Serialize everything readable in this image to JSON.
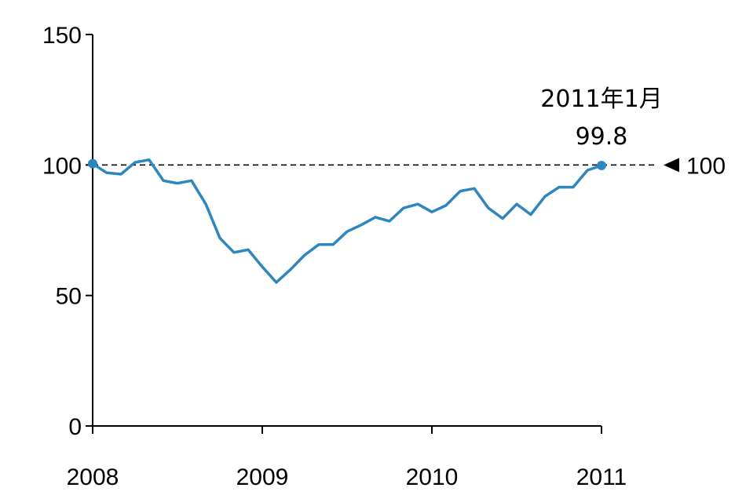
{
  "chart_data": {
    "type": "line",
    "title": "",
    "xlabel": "",
    "ylabel": "",
    "xlim": [
      2008.0,
      2011.0
    ],
    "ylim": [
      0,
      150
    ],
    "x_ticks": [
      {
        "value": 2008,
        "label": "2008"
      },
      {
        "value": 2009,
        "label": "2009"
      },
      {
        "value": 2010,
        "label": "2010"
      },
      {
        "value": 2011,
        "label": "2011"
      }
    ],
    "y_ticks": [
      {
        "value": 0,
        "label": "0"
      },
      {
        "value": 50,
        "label": "50"
      },
      {
        "value": 100,
        "label": "100"
      },
      {
        "value": 150,
        "label": "150"
      }
    ],
    "grid": false,
    "reference_line": {
      "value": 100,
      "label": "100",
      "style": "dashed",
      "marker": "left-pointing triangle"
    },
    "series": [
      {
        "color": "#2e86c1",
        "points": [
          {
            "x": 2008.0,
            "y": 100.5
          },
          {
            "x": 2008.083,
            "y": 97
          },
          {
            "x": 2008.167,
            "y": 96.5
          },
          {
            "x": 2008.25,
            "y": 101
          },
          {
            "x": 2008.333,
            "y": 102
          },
          {
            "x": 2008.417,
            "y": 94
          },
          {
            "x": 2008.5,
            "y": 93
          },
          {
            "x": 2008.583,
            "y": 94
          },
          {
            "x": 2008.667,
            "y": 85
          },
          {
            "x": 2008.75,
            "y": 72
          },
          {
            "x": 2008.833,
            "y": 66.5
          },
          {
            "x": 2008.917,
            "y": 67.5
          },
          {
            "x": 2009.0,
            "y": 61
          },
          {
            "x": 2009.083,
            "y": 55
          },
          {
            "x": 2009.167,
            "y": 60
          },
          {
            "x": 2009.25,
            "y": 65.5
          },
          {
            "x": 2009.333,
            "y": 69.5
          },
          {
            "x": 2009.417,
            "y": 69.5
          },
          {
            "x": 2009.5,
            "y": 74.5
          },
          {
            "x": 2009.583,
            "y": 77
          },
          {
            "x": 2009.667,
            "y": 80
          },
          {
            "x": 2009.75,
            "y": 78.5
          },
          {
            "x": 2009.833,
            "y": 83.5
          },
          {
            "x": 2009.917,
            "y": 85
          },
          {
            "x": 2010.0,
            "y": 82
          },
          {
            "x": 2010.083,
            "y": 84.5
          },
          {
            "x": 2010.167,
            "y": 90
          },
          {
            "x": 2010.25,
            "y": 91
          },
          {
            "x": 2010.333,
            "y": 83.5
          },
          {
            "x": 2010.417,
            "y": 79.5
          },
          {
            "x": 2010.5,
            "y": 85
          },
          {
            "x": 2010.583,
            "y": 81
          },
          {
            "x": 2010.667,
            "y": 88
          },
          {
            "x": 2010.75,
            "y": 91.5
          },
          {
            "x": 2010.833,
            "y": 91.5
          },
          {
            "x": 2010.917,
            "y": 98
          },
          {
            "x": 2011.0,
            "y": 99.8
          }
        ],
        "markers": [
          {
            "x": 2008.0,
            "y": 100.5
          },
          {
            "x": 2011.0,
            "y": 99.8
          }
        ]
      }
    ],
    "annotations": [
      {
        "x": 2011.0,
        "y": 99.8,
        "line1": "2011年1月",
        "line2": "99.8"
      }
    ]
  }
}
